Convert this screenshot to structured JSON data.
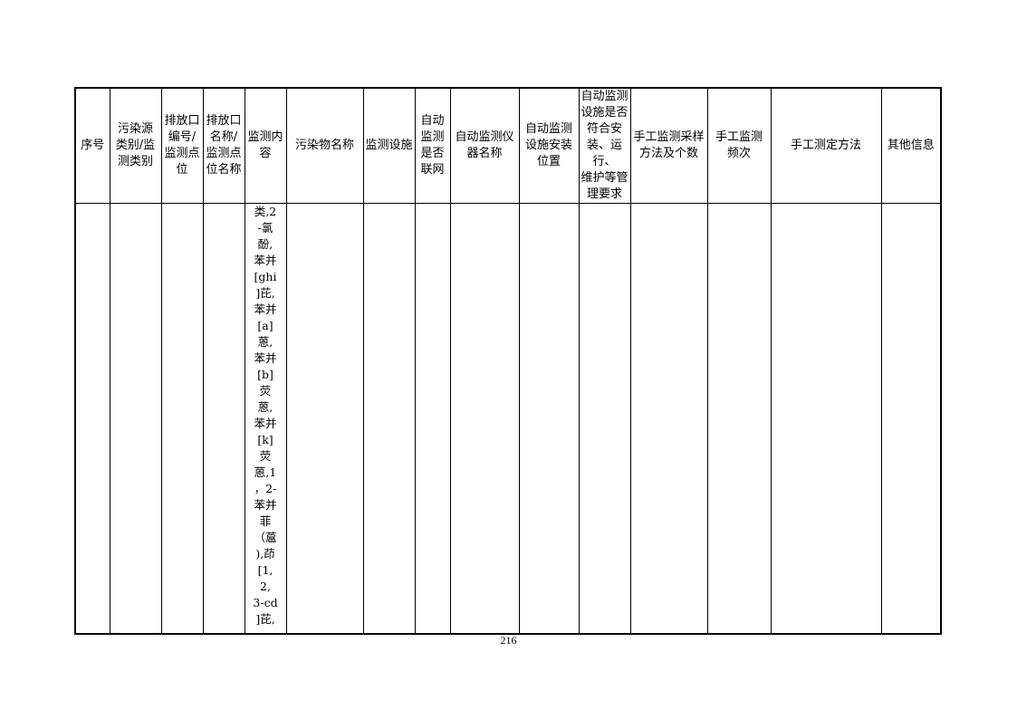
{
  "table": {
    "headers": [
      [
        "序号"
      ],
      [
        "污染源",
        "类别/监",
        "测类别"
      ],
      [
        "排放口",
        "编号/",
        "监测点",
        "位"
      ],
      [
        "排放口",
        "名称/",
        "监测点",
        "位名称"
      ],
      [
        "监测内",
        "容"
      ],
      [
        "污染物名称"
      ],
      [
        "监测设施"
      ],
      [
        "自动",
        "监测",
        "是否",
        "联网"
      ],
      [
        "自动监测仪",
        "器名称"
      ],
      [
        "自动监测",
        "设施安装",
        "位置"
      ],
      [
        "自动监测",
        "设施是否",
        "符合安",
        "装、运行、",
        "维护等管",
        "理要求"
      ],
      [
        "手工监测采样",
        "方法及个数"
      ],
      [
        "手工监测",
        "频次"
      ],
      [
        "手工测定方法"
      ],
      [
        "其他信息"
      ]
    ],
    "monitoring_content_lines": [
      "类,2",
      "-氯",
      "酚,",
      "苯并",
      "[ghi",
      "]芘,",
      "苯并",
      "[a]",
      "蒽,",
      "苯并",
      "[b]",
      "荧",
      "蒽,",
      "苯并",
      "[k]",
      "荧",
      "蒽,1",
      "，2-",
      "苯并",
      "菲",
      "（蔰",
      "),茚",
      "[1,",
      "2,",
      "3-cd",
      "]芘,"
    ]
  },
  "page_number": "216"
}
